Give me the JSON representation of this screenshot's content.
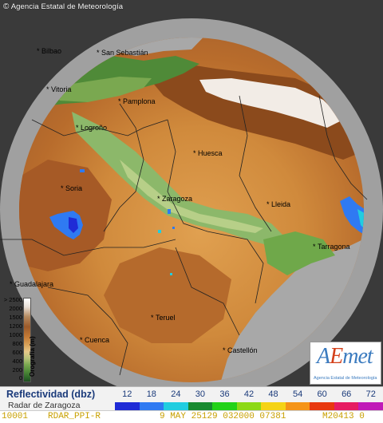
{
  "credit": {
    "symbol": "©",
    "text": "Agencia Estatal de Meteorología"
  },
  "cities": [
    {
      "name": "Bilbao"
    },
    {
      "name": "San Sebastián"
    },
    {
      "name": "Vitoria"
    },
    {
      "name": "Pamplona"
    },
    {
      "name": "Logroño"
    },
    {
      "name": "Huesca"
    },
    {
      "name": "Soria"
    },
    {
      "name": "Zaragoza"
    },
    {
      "name": "Lleida"
    },
    {
      "name": "Tarragona"
    },
    {
      "name": "Guadalajara"
    },
    {
      "name": "Teruel"
    },
    {
      "name": "Cuenca"
    },
    {
      "name": "Castellón"
    }
  ],
  "elevation_legend": {
    "title": "Orografía (m)",
    "ticks": [
      "> 2500",
      "2000",
      "1500",
      "1200",
      "1000",
      "800",
      "600",
      "400",
      "200",
      "0"
    ]
  },
  "logo": {
    "brand_a": "A",
    "brand_e": "E",
    "brand_rest": "met",
    "subtitle": "Agencia Estatal de Meteorología"
  },
  "legend": {
    "title": "Reflectividad (dbz)",
    "subtitle": "Radar de Zaragoza",
    "values": [
      "12",
      "18",
      "24",
      "30",
      "36",
      "42",
      "48",
      "54",
      "60",
      "66",
      "72"
    ],
    "colors": [
      "#1f2bd6",
      "#2f7af2",
      "#21cde0",
      "#188a30",
      "#22d218",
      "#8cd916",
      "#f5d316",
      "#f59418",
      "#e8380f",
      "#e61c62",
      "#c01ab8"
    ]
  },
  "status": {
    "field1": "10001",
    "field2": "RDAR_PPI-R",
    "field3": "9 MAY 25129 032000 07381",
    "field4": "M20413 0"
  }
}
